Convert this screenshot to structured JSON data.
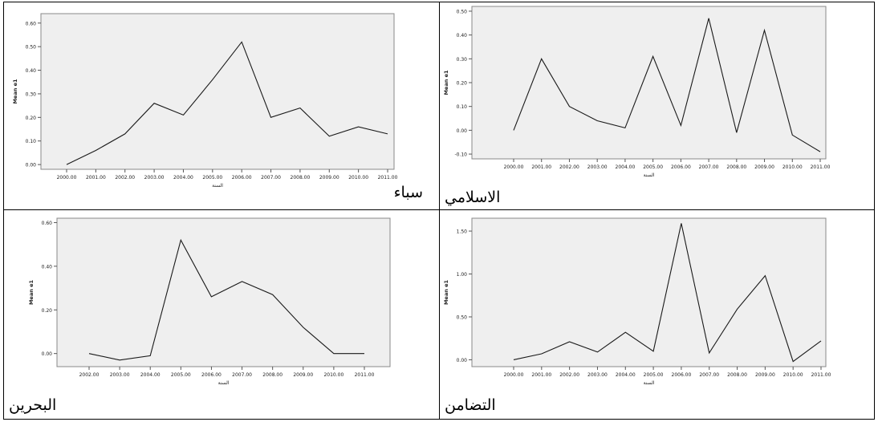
{
  "chart_data": [
    {
      "type": "line",
      "caption": "سباء",
      "xlabel": "السنة",
      "ylabel": "Mean e1",
      "categories": [
        "2000.00",
        "2001.00",
        "2002.00",
        "2003.00",
        "2004.00",
        "2005.00",
        "2006.00",
        "2007.00",
        "2008.00",
        "2009.00",
        "2010.00",
        "2011.00"
      ],
      "values": [
        0.0,
        0.06,
        0.13,
        0.26,
        0.21,
        0.36,
        0.52,
        0.2,
        0.24,
        0.12,
        0.16,
        0.13
      ],
      "ylim": [
        -0.02,
        0.64
      ],
      "yticks": [
        0.0,
        0.1,
        0.2,
        0.3,
        0.4,
        0.5,
        0.6
      ]
    },
    {
      "type": "line",
      "caption": "الاسلامي",
      "xlabel": "السنة",
      "ylabel": "Mean e1",
      "categories": [
        "2000.00",
        "2001.00",
        "2002.00",
        "2003.00",
        "2004.00",
        "2005.00",
        "2006.00",
        "2007.00",
        "2008.00",
        "2009.00",
        "2010.00",
        "2011.00"
      ],
      "values": [
        0.0,
        0.3,
        0.1,
        0.04,
        0.01,
        0.31,
        0.02,
        0.47,
        -0.01,
        0.42,
        -0.02,
        -0.09
      ],
      "ylim": [
        -0.12,
        0.52
      ],
      "yticks": [
        -0.1,
        0.0,
        0.1,
        0.2,
        0.3,
        0.4,
        0.5
      ]
    },
    {
      "type": "line",
      "caption": "البحرين",
      "xlabel": "السنة",
      "ylabel": "Mean e1",
      "categories": [
        "2002.00",
        "2003.00",
        "2004.00",
        "2005.00",
        "2006.00",
        "2007.00",
        "2008.00",
        "2009.00",
        "2010.00",
        "2011.00"
      ],
      "values": [
        0.0,
        -0.03,
        -0.01,
        0.52,
        0.26,
        0.33,
        0.27,
        0.12,
        0.0,
        0.0
      ],
      "ylim": [
        -0.06,
        0.62
      ],
      "yticks": [
        0.0,
        0.2,
        0.4,
        0.6
      ]
    },
    {
      "type": "line",
      "caption": "التضامن",
      "xlabel": "السنة",
      "ylabel": "Mean e1",
      "categories": [
        "2000.00",
        "2001.00",
        "2002.00",
        "2003.00",
        "2004.00",
        "2005.00",
        "2006.00",
        "2007.00",
        "2008.00",
        "2009.00",
        "2010.00",
        "2011.00"
      ],
      "values": [
        0.0,
        0.07,
        0.21,
        0.09,
        0.32,
        0.1,
        1.59,
        0.08,
        0.59,
        0.98,
        -0.02,
        0.22
      ],
      "ylim": [
        -0.08,
        1.65
      ],
      "yticks": [
        0.0,
        0.5,
        1.0,
        1.5
      ]
    }
  ]
}
